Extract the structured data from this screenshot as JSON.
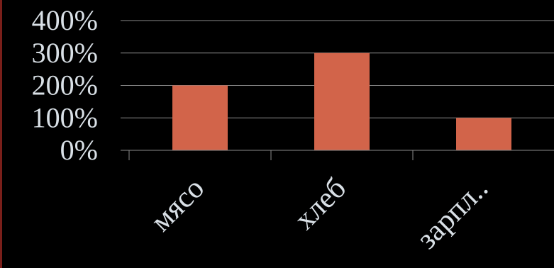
{
  "chart_data": {
    "type": "bar",
    "categories": [
      "мясо",
      "хлеб",
      "зарпл.."
    ],
    "values": [
      200,
      300,
      100
    ],
    "yticks": [
      "0%",
      "100%",
      "200%",
      "300%",
      "400%"
    ],
    "ylim": [
      0,
      400
    ],
    "grid": true,
    "legend": "none",
    "colors": {
      "bar": "#d2644a",
      "grid": "#8a8a8a",
      "text": "#d9e0e6",
      "background": "#000000",
      "edge": "#7a1f1a"
    }
  }
}
